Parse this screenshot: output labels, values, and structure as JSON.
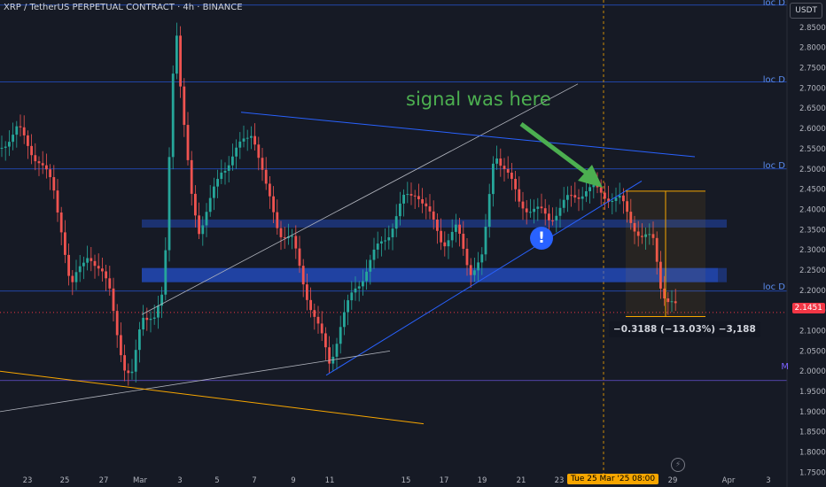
{
  "header": {
    "symbol_title": "XRP / TetherUS PERPETUAL CONTRACT · 4h · BINANCE",
    "currency_button": "USDT"
  },
  "annotations": {
    "signal_text": "signal was here",
    "measure_text": "−0.3188 (−13.03%) −3,188",
    "current_price": "2.1451",
    "crosshair_date": "Tue 25 Mar '25  08:00",
    "level_labels": [
      "loc D",
      "loc D",
      "loc D",
      "loc D"
    ],
    "m_label": "M"
  },
  "icons": {
    "warning": "exclamation-circle-icon",
    "bolt": "lightning-icon"
  },
  "colors": {
    "up": "#26a69a",
    "down": "#ef5350",
    "signal": "#4caf50",
    "level_line": "#2962ff",
    "zone": "#2962ff",
    "trendline_orange": "#f7a600",
    "price_tag": "#f23645",
    "m_line": "#7b61ff"
  },
  "chart_data": {
    "type": "candlestick",
    "title": "XRP / TetherUS PERPETUAL CONTRACT · 4h · BINANCE",
    "x_tick_labels": [
      "23",
      "25",
      "27",
      "Mar",
      "3",
      "5",
      "7",
      "9",
      "11",
      "15",
      "17",
      "19",
      "21",
      "23",
      "29",
      "Apr",
      "3"
    ],
    "y_tick_labels": [
      "2.8500",
      "2.8000",
      "2.7500",
      "2.7000",
      "2.6500",
      "2.6000",
      "2.5500",
      "2.5000",
      "2.4500",
      "2.4000",
      "2.3500",
      "2.3000",
      "2.2500",
      "2.2000",
      "2.1500",
      "2.1000",
      "2.0500",
      "2.0000",
      "1.9500",
      "1.9000",
      "1.8500",
      "1.8000",
      "1.7500"
    ],
    "ylim": [
      1.74,
      2.9
    ],
    "last_price": 2.1451,
    "horizontal_levels": [
      {
        "label": "loc D",
        "value": 2.905
      },
      {
        "label": "loc D",
        "value": 2.715
      },
      {
        "label": "loc D",
        "value": 2.5
      },
      {
        "label": "loc D",
        "value": 2.198
      },
      {
        "label": "M",
        "value": 1.977
      }
    ],
    "zones": [
      {
        "from": 2.355,
        "to": 2.375
      },
      {
        "from": 2.22,
        "to": 2.255
      }
    ],
    "measurement": {
      "change": -0.3188,
      "percent": -13.03,
      "ticks": -3188
    },
    "candles": []
  }
}
